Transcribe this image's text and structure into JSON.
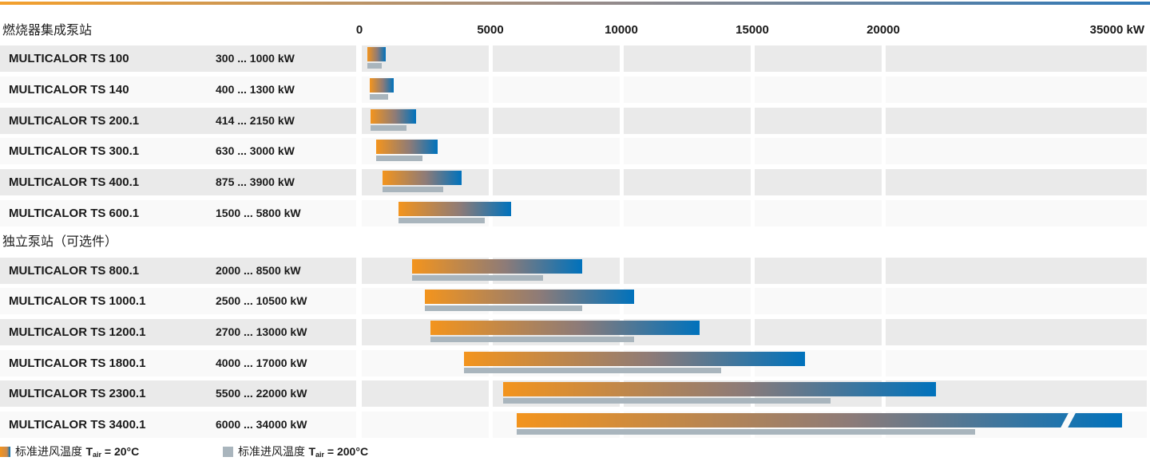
{
  "sections": [
    {
      "title": "燃烧器集成泵站"
    },
    {
      "title": "独立泵站（可选件）"
    }
  ],
  "chart_data": {
    "type": "bar",
    "orientation": "horizontal-range",
    "unit": "kW",
    "xlim": [
      0,
      35000
    ],
    "x_ticks": [
      0,
      5000,
      10000,
      15000,
      20000
    ],
    "x_end_label": "35000 kW",
    "axis_break_note": "axis compressed after 20000; TS 3400.1 bar drawn with diagonal break",
    "grid": "shaded column bands at every 5000 kW",
    "legend_position": "bottom",
    "rows": [
      {
        "model": "MULTICALOR TS 100",
        "range_label": "300 ... 1000 kW",
        "section": 0,
        "t20": [
          300,
          1000
        ],
        "t200": [
          300,
          850
        ],
        "t200_estimated": true,
        "broken": false
      },
      {
        "model": "MULTICALOR TS 140",
        "range_label": "400 ... 1300 kW",
        "section": 0,
        "t20": [
          400,
          1300
        ],
        "t200": [
          400,
          1100
        ],
        "t200_estimated": true,
        "broken": false
      },
      {
        "model": "MULTICALOR TS 200.1",
        "range_label": "414 ... 2150 kW",
        "section": 0,
        "t20": [
          414,
          2150
        ],
        "t200": [
          414,
          1800
        ],
        "t200_estimated": true,
        "broken": false
      },
      {
        "model": "MULTICALOR TS 300.1",
        "range_label": "630 ... 3000 kW",
        "section": 0,
        "t20": [
          630,
          3000
        ],
        "t200": [
          630,
          2400
        ],
        "t200_estimated": true,
        "broken": false
      },
      {
        "model": "MULTICALOR TS 400.1",
        "range_label": "875 ... 3900 kW",
        "section": 0,
        "t20": [
          875,
          3900
        ],
        "t200": [
          875,
          3200
        ],
        "t200_estimated": true,
        "broken": false
      },
      {
        "model": "MULTICALOR TS 600.1",
        "range_label": "1500 ... 5800 kW",
        "section": 0,
        "t20": [
          1500,
          5800
        ],
        "t200": [
          1500,
          4800
        ],
        "t200_estimated": true,
        "broken": false
      },
      {
        "model": "MULTICALOR TS 800.1",
        "range_label": "2000 ... 8500 kW",
        "section": 1,
        "t20": [
          2000,
          8500
        ],
        "t200": [
          2000,
          7000
        ],
        "t200_estimated": true,
        "broken": false
      },
      {
        "model": "MULTICALOR TS 1000.1",
        "range_label": "2500 ... 10500 kW",
        "section": 1,
        "t20": [
          2500,
          10500
        ],
        "t200": [
          2500,
          8500
        ],
        "t200_estimated": true,
        "broken": false
      },
      {
        "model": "MULTICALOR TS 1200.1",
        "range_label": "2700 ... 13000 kW",
        "section": 1,
        "t20": [
          2700,
          13000
        ],
        "t200": [
          2700,
          10500
        ],
        "t200_estimated": true,
        "broken": false
      },
      {
        "model": "MULTICALOR TS 1800.1",
        "range_label": "4000 ... 17000 kW",
        "section": 1,
        "t20": [
          4000,
          17000
        ],
        "t200": [
          4000,
          13800
        ],
        "t200_estimated": true,
        "broken": false
      },
      {
        "model": "MULTICALOR TS 2300.1",
        "range_label": "5500 ... 22000 kW",
        "section": 1,
        "t20": [
          5500,
          22000
        ],
        "t200": [
          5500,
          18000
        ],
        "t200_estimated": true,
        "broken": false
      },
      {
        "model": "MULTICALOR TS 3400.1",
        "range_label": "6000 ... 34000 kW",
        "section": 1,
        "t20": [
          6000,
          34000
        ],
        "t200": [
          6000,
          23500
        ],
        "t200_estimated": true,
        "broken": true
      }
    ],
    "legend": [
      {
        "swatch": "orange-blue-gradient",
        "label_cjk": "标准进风温度",
        "t_symbol": "T",
        "t_sub": "air",
        "t_value": " = 20°C"
      },
      {
        "swatch": "gray",
        "label_cjk": "标准进风温度",
        "t_symbol": "T",
        "t_sub": "air",
        "t_value": " = 200°C"
      }
    ]
  },
  "colors": {
    "bar_orange": "#F3941D",
    "bar_blue": "#0072BC",
    "bar_gradient_mid": "#8D7B78",
    "bar_gray_200c": "#A9B5BD",
    "row_band_dark": "#EAEAEA",
    "row_band_light": "#F9F9F9",
    "text": "#1A1A1A",
    "accent_bar_left": "#F4A02C",
    "accent_bar_right": "#2F79B8"
  }
}
